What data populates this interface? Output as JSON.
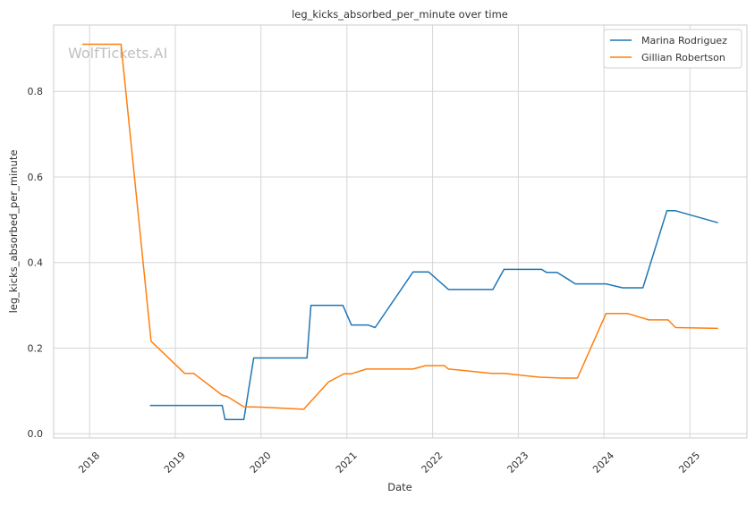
{
  "chart_data": {
    "type": "line",
    "title": "leg_kicks_absorbed_per_minute over time",
    "xlabel": "Date",
    "ylabel": "leg_kicks_absorbed_per_minute",
    "watermark": "WolfTickets.AI",
    "xlim": [
      "2017-08-01",
      "2025-09-01"
    ],
    "ylim": [
      -0.01,
      0.955
    ],
    "x_ticks": [
      "2018",
      "2019",
      "2020",
      "2021",
      "2022",
      "2023",
      "2024",
      "2025"
    ],
    "y_ticks": [
      "0.0",
      "0.2",
      "0.4",
      "0.6",
      "0.8"
    ],
    "y_tick_values": [
      0.0,
      0.2,
      0.4,
      0.6,
      0.8
    ],
    "grid": true,
    "legend_position": "top-right",
    "series": [
      {
        "name": "Marina Rodriguez",
        "color": "#1f77b4",
        "points": [
          [
            "2018-09-15",
            0.066
          ],
          [
            "2019-07-20",
            0.066
          ],
          [
            "2019-08-01",
            0.033
          ],
          [
            "2019-10-20",
            0.033
          ],
          [
            "2019-12-01",
            0.177
          ],
          [
            "2020-07-15",
            0.177
          ],
          [
            "2020-08-01",
            0.3
          ],
          [
            "2020-12-15",
            0.3
          ],
          [
            "2021-01-20",
            0.254
          ],
          [
            "2021-04-01",
            0.254
          ],
          [
            "2021-05-01",
            0.248
          ],
          [
            "2021-10-10",
            0.378
          ],
          [
            "2021-12-15",
            0.378
          ],
          [
            "2022-03-10",
            0.337
          ],
          [
            "2022-09-15",
            0.337
          ],
          [
            "2022-11-01",
            0.384
          ],
          [
            "2023-04-10",
            0.384
          ],
          [
            "2023-05-01",
            0.377
          ],
          [
            "2023-06-15",
            0.377
          ],
          [
            "2023-09-01",
            0.35
          ],
          [
            "2024-01-10",
            0.35
          ],
          [
            "2024-03-20",
            0.341
          ],
          [
            "2024-06-15",
            0.341
          ],
          [
            "2024-09-25",
            0.521
          ],
          [
            "2024-11-01",
            0.521
          ],
          [
            "2025-05-01",
            0.493
          ]
        ]
      },
      {
        "name": "Gillian Robertson",
        "color": "#ff7f0e",
        "points": [
          [
            "2017-12-01",
            0.91
          ],
          [
            "2018-05-15",
            0.91
          ],
          [
            "2018-09-20",
            0.216
          ],
          [
            "2019-02-10",
            0.141
          ],
          [
            "2019-03-20",
            0.141
          ],
          [
            "2019-07-20",
            0.09
          ],
          [
            "2019-08-10",
            0.087
          ],
          [
            "2019-10-20",
            0.063
          ],
          [
            "2020-01-01",
            0.062
          ],
          [
            "2020-07-01",
            0.057
          ],
          [
            "2020-10-15",
            0.121
          ],
          [
            "2020-12-20",
            0.14
          ],
          [
            "2021-01-20",
            0.14
          ],
          [
            "2021-03-25",
            0.151
          ],
          [
            "2021-10-10",
            0.151
          ],
          [
            "2021-12-01",
            0.159
          ],
          [
            "2022-02-20",
            0.159
          ],
          [
            "2022-03-10",
            0.151
          ],
          [
            "2022-09-10",
            0.141
          ],
          [
            "2022-11-01",
            0.141
          ],
          [
            "2023-04-01",
            0.132
          ],
          [
            "2023-07-10",
            0.13
          ],
          [
            "2023-09-10",
            0.13
          ],
          [
            "2024-01-10",
            0.281
          ],
          [
            "2024-04-10",
            0.281
          ],
          [
            "2024-07-10",
            0.266
          ],
          [
            "2024-09-30",
            0.266
          ],
          [
            "2024-11-01",
            0.248
          ],
          [
            "2025-05-01",
            0.246
          ]
        ]
      }
    ]
  }
}
